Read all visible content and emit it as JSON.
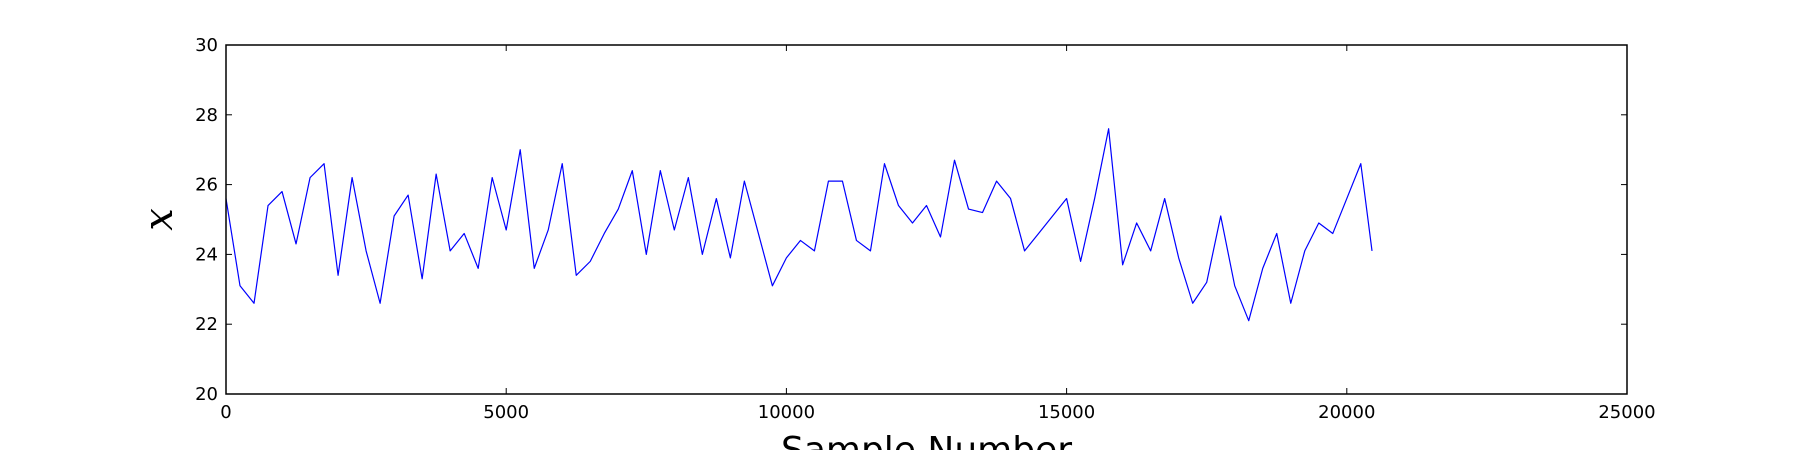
{
  "chart_data": {
    "type": "line",
    "title": "",
    "xlabel": "Sample Number",
    "ylabel": "x",
    "xlim": [
      0,
      25000
    ],
    "ylim": [
      20,
      30
    ],
    "xticks": [
      "0",
      "5000",
      "10000",
      "15000",
      "20000",
      "25000"
    ],
    "yticks": [
      "20",
      "22",
      "24",
      "26",
      "28",
      "30"
    ],
    "grid": false,
    "legend": "none",
    "line_color": "#0000ff",
    "series": [
      {
        "x": [
          0,
          250,
          500,
          750,
          1000,
          1250,
          1500,
          1750,
          2000,
          2250,
          2500,
          2750,
          3000,
          3250,
          3500,
          3750,
          4000,
          4250,
          4500,
          4750,
          5000,
          5250,
          5500,
          5750,
          6000,
          6250,
          6500,
          6750,
          7000,
          7250,
          7500,
          7750,
          8000,
          8250,
          8500,
          8750,
          9000,
          9250,
          9500,
          9750,
          10000,
          10250,
          10500,
          10750,
          11000,
          11250,
          11500,
          11750,
          12000,
          12250,
          12500,
          12750,
          13000,
          13250,
          13500,
          13750,
          14000,
          14250,
          14500,
          14750,
          15000,
          15250,
          15500,
          15750,
          16000,
          16250,
          16500,
          16750,
          17000,
          17250,
          17500,
          17750,
          18000,
          18250,
          18500,
          18750,
          19000,
          19250,
          19500,
          19750,
          20000,
          20250,
          20450
        ],
        "values": [
          25.6,
          23.1,
          22.6,
          25.4,
          25.8,
          24.3,
          26.2,
          26.6,
          23.4,
          26.2,
          24.1,
          22.6,
          25.1,
          25.7,
          23.3,
          26.3,
          24.1,
          24.6,
          23.6,
          26.2,
          24.7,
          27.0,
          23.6,
          24.7,
          26.6,
          23.4,
          23.8,
          24.6,
          25.3,
          26.4,
          24.0,
          26.4,
          24.7,
          26.2,
          24.0,
          25.6,
          23.9,
          26.1,
          24.6,
          23.1,
          23.9,
          24.4,
          24.1,
          26.1,
          26.1,
          24.4,
          24.1,
          26.6,
          25.4,
          24.9,
          25.4,
          24.5,
          26.7,
          25.3,
          25.2,
          26.1,
          25.6,
          24.1,
          24.6,
          25.1,
          25.6,
          23.8,
          25.6,
          27.6,
          23.7,
          24.9,
          24.1,
          25.6,
          23.9,
          22.6,
          23.2,
          25.1,
          23.1,
          22.1,
          23.6,
          24.6,
          22.6,
          24.1,
          24.9,
          24.6,
          25.6,
          26.6,
          24.1
        ]
      }
    ]
  }
}
